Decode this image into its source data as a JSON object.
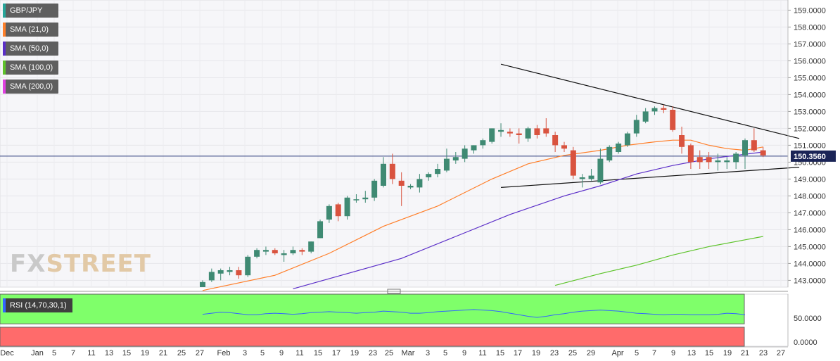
{
  "legend": {
    "instrument": {
      "label": "GBP/JPY",
      "color": "#26a69a"
    },
    "sma21": {
      "label": "SMA (21,0)",
      "color": "#ff7f2a"
    },
    "sma50": {
      "label": "SMA (50,0)",
      "color": "#5b2ec8"
    },
    "sma100": {
      "label": "SMA (100,0)",
      "color": "#5dc32a"
    },
    "sma200": {
      "label": "SMA (200,0)",
      "color": "#e040e0"
    }
  },
  "watermark": {
    "fx": "FX",
    "street": "STREET"
  },
  "price_badge": "150.3560",
  "rsi": {
    "label": "RSI (14,70,30,1)",
    "color": "#3366ff",
    "overbought_color": "#7fff6a",
    "oversold_color": "#ff6b6b",
    "ticks": [
      "50.0000",
      "0.0000"
    ]
  },
  "chart_data": {
    "type": "candlestick",
    "ylim": [
      142.6,
      159.6
    ],
    "y_ticks": [
      "159.0000",
      "158.0000",
      "157.0000",
      "156.0000",
      "155.0000",
      "154.0000",
      "153.0000",
      "152.0000",
      "151.0000",
      "150.0000",
      "149.0000",
      "148.0000",
      "147.0000",
      "146.0000",
      "145.0000",
      "144.0000",
      "143.0000"
    ],
    "x_ticks": [
      "Dec",
      "Jan",
      "5",
      "7",
      "11",
      "13",
      "15",
      "19",
      "21",
      "25",
      "27",
      "Feb",
      "3",
      "5",
      "9",
      "11",
      "15",
      "17",
      "19",
      "23",
      "25",
      "Mar",
      "3",
      "5",
      "9",
      "11",
      "15",
      "17",
      "19",
      "23",
      "25",
      "29",
      "Apr",
      "5",
      "7",
      "9",
      "13",
      "15",
      "19",
      "21",
      "23",
      "27"
    ],
    "candles": [
      {
        "o": 142.6,
        "h": 143.0,
        "l": 142.6,
        "c": 142.9
      },
      {
        "o": 143.0,
        "h": 143.7,
        "l": 142.9,
        "c": 143.5
      },
      {
        "o": 143.4,
        "h": 143.7,
        "l": 143.0,
        "c": 143.6
      },
      {
        "o": 143.5,
        "h": 143.8,
        "l": 143.3,
        "c": 143.6
      },
      {
        "o": 143.6,
        "h": 143.8,
        "l": 143.1,
        "c": 143.3
      },
      {
        "o": 143.3,
        "h": 144.5,
        "l": 143.2,
        "c": 144.4
      },
      {
        "o": 144.4,
        "h": 144.9,
        "l": 144.3,
        "c": 144.8
      },
      {
        "o": 144.7,
        "h": 145.0,
        "l": 144.5,
        "c": 144.8
      },
      {
        "o": 144.8,
        "h": 144.9,
        "l": 144.5,
        "c": 144.6
      },
      {
        "o": 144.5,
        "h": 144.8,
        "l": 144.1,
        "c": 144.6
      },
      {
        "o": 144.6,
        "h": 145.0,
        "l": 144.5,
        "c": 144.8
      },
      {
        "o": 144.8,
        "h": 144.9,
        "l": 144.5,
        "c": 144.7
      },
      {
        "o": 144.7,
        "h": 145.3,
        "l": 144.6,
        "c": 145.3
      },
      {
        "o": 145.5,
        "h": 146.6,
        "l": 145.5,
        "c": 146.5
      },
      {
        "o": 146.6,
        "h": 147.5,
        "l": 146.4,
        "c": 147.4
      },
      {
        "o": 147.5,
        "h": 147.6,
        "l": 146.5,
        "c": 146.8
      },
      {
        "o": 146.8,
        "h": 148.0,
        "l": 146.6,
        "c": 147.9
      },
      {
        "o": 147.8,
        "h": 148.1,
        "l": 147.6,
        "c": 147.8
      },
      {
        "o": 147.8,
        "h": 148.3,
        "l": 147.6,
        "c": 147.9
      },
      {
        "o": 147.9,
        "h": 149.0,
        "l": 147.7,
        "c": 148.9
      },
      {
        "o": 148.6,
        "h": 150.3,
        "l": 148.5,
        "c": 149.9
      },
      {
        "o": 149.9,
        "h": 150.5,
        "l": 148.7,
        "c": 149.0
      },
      {
        "o": 148.9,
        "h": 149.4,
        "l": 147.4,
        "c": 148.6
      },
      {
        "o": 148.5,
        "h": 148.7,
        "l": 148.4,
        "c": 148.6
      },
      {
        "o": 148.5,
        "h": 149.3,
        "l": 148.2,
        "c": 149.0
      },
      {
        "o": 149.1,
        "h": 149.4,
        "l": 148.9,
        "c": 149.3
      },
      {
        "o": 149.3,
        "h": 149.9,
        "l": 149.1,
        "c": 149.6
      },
      {
        "o": 149.5,
        "h": 150.8,
        "l": 149.4,
        "c": 150.2
      },
      {
        "o": 150.1,
        "h": 150.6,
        "l": 149.9,
        "c": 150.3
      },
      {
        "o": 150.2,
        "h": 151.0,
        "l": 150.0,
        "c": 150.8
      },
      {
        "o": 150.7,
        "h": 151.0,
        "l": 150.5,
        "c": 151.0
      },
      {
        "o": 151.0,
        "h": 151.4,
        "l": 150.8,
        "c": 151.3
      },
      {
        "o": 151.2,
        "h": 152.0,
        "l": 151.1,
        "c": 152.0
      },
      {
        "o": 151.8,
        "h": 152.3,
        "l": 151.5,
        "c": 151.9
      },
      {
        "o": 151.8,
        "h": 152.0,
        "l": 151.5,
        "c": 151.7
      },
      {
        "o": 151.7,
        "h": 152.0,
        "l": 151.1,
        "c": 151.6
      },
      {
        "o": 151.4,
        "h": 152.1,
        "l": 151.2,
        "c": 152.0
      },
      {
        "o": 152.0,
        "h": 152.2,
        "l": 151.4,
        "c": 151.6
      },
      {
        "o": 152.0,
        "h": 152.6,
        "l": 151.5,
        "c": 151.7
      },
      {
        "o": 151.6,
        "h": 151.8,
        "l": 150.6,
        "c": 151.0
      },
      {
        "o": 151.0,
        "h": 151.2,
        "l": 150.6,
        "c": 150.8
      },
      {
        "o": 150.7,
        "h": 150.9,
        "l": 149.0,
        "c": 149.2
      },
      {
        "o": 149.0,
        "h": 149.3,
        "l": 148.5,
        "c": 149.1
      },
      {
        "o": 149.0,
        "h": 149.6,
        "l": 148.9,
        "c": 149.2
      },
      {
        "o": 148.8,
        "h": 150.8,
        "l": 148.7,
        "c": 150.2
      },
      {
        "o": 150.1,
        "h": 151.0,
        "l": 150.0,
        "c": 150.9
      },
      {
        "o": 150.6,
        "h": 151.2,
        "l": 150.5,
        "c": 151.1
      },
      {
        "o": 151.0,
        "h": 151.8,
        "l": 150.9,
        "c": 151.7
      },
      {
        "o": 151.7,
        "h": 152.8,
        "l": 151.5,
        "c": 152.5
      },
      {
        "o": 152.4,
        "h": 153.2,
        "l": 152.3,
        "c": 153.0
      },
      {
        "o": 153.0,
        "h": 153.3,
        "l": 152.8,
        "c": 153.2
      },
      {
        "o": 153.2,
        "h": 153.4,
        "l": 152.9,
        "c": 153.1
      },
      {
        "o": 153.1,
        "h": 153.3,
        "l": 151.8,
        "c": 151.9
      },
      {
        "o": 151.6,
        "h": 152.1,
        "l": 150.5,
        "c": 150.9
      },
      {
        "o": 151.0,
        "h": 151.1,
        "l": 149.6,
        "c": 150.0
      },
      {
        "o": 150.3,
        "h": 150.7,
        "l": 149.6,
        "c": 150.0
      },
      {
        "o": 150.3,
        "h": 150.6,
        "l": 149.6,
        "c": 150.0
      },
      {
        "o": 150.0,
        "h": 150.5,
        "l": 149.5,
        "c": 150.1
      },
      {
        "o": 150.0,
        "h": 150.3,
        "l": 149.6,
        "c": 150.1
      },
      {
        "o": 150.0,
        "h": 150.6,
        "l": 149.6,
        "c": 150.5
      },
      {
        "o": 150.4,
        "h": 151.4,
        "l": 149.6,
        "c": 151.3
      },
      {
        "o": 151.3,
        "h": 152.0,
        "l": 150.6,
        "c": 150.7
      },
      {
        "o": 150.7,
        "h": 150.9,
        "l": 150.3,
        "c": 150.4
      }
    ],
    "sma21": [
      [
        0,
        142.4
      ],
      [
        8,
        143.3
      ],
      [
        14,
        144.6
      ],
      [
        20,
        146.2
      ],
      [
        26,
        147.4
      ],
      [
        32,
        149.0
      ],
      [
        36,
        149.9
      ],
      [
        40,
        150.4
      ],
      [
        44,
        150.7
      ],
      [
        47,
        151.0
      ],
      [
        50,
        151.2
      ],
      [
        52,
        151.3
      ],
      [
        54,
        151.3
      ],
      [
        56,
        151.0
      ],
      [
        58,
        150.8
      ],
      [
        60,
        150.7
      ],
      [
        62,
        150.9
      ]
    ],
    "sma50": [
      [
        10,
        142.5
      ],
      [
        16,
        143.4
      ],
      [
        22,
        144.3
      ],
      [
        28,
        145.6
      ],
      [
        34,
        146.9
      ],
      [
        40,
        148.0
      ],
      [
        44,
        148.6
      ],
      [
        48,
        149.3
      ],
      [
        52,
        149.8
      ],
      [
        56,
        150.2
      ],
      [
        59,
        150.4
      ],
      [
        62,
        150.6
      ]
    ],
    "sma100": [
      [
        39,
        142.7
      ],
      [
        44,
        143.4
      ],
      [
        48,
        143.9
      ],
      [
        52,
        144.5
      ],
      [
        56,
        145.0
      ],
      [
        60,
        145.4
      ],
      [
        62,
        145.6
      ]
    ],
    "trendlines": [
      {
        "from": [
          33,
          155.8
        ],
        "to": [
          66,
          151.4
        ]
      },
      {
        "from": [
          33,
          148.5
        ],
        "to": [
          66,
          149.7
        ]
      }
    ],
    "current_price": 150.356,
    "rsi_values": [
      56,
      58,
      60,
      59,
      57,
      55,
      55,
      57,
      58,
      57,
      56,
      57,
      59,
      60,
      61,
      60,
      59,
      58,
      59,
      60,
      62,
      61,
      60,
      58,
      58,
      59,
      61,
      62,
      63,
      64,
      65,
      64,
      63,
      61,
      58,
      55,
      52,
      50,
      52,
      55,
      57,
      60,
      62,
      63,
      64,
      63,
      62,
      60,
      58,
      57,
      56,
      55,
      56,
      56,
      55,
      55,
      55,
      56,
      58,
      57,
      55
    ]
  }
}
